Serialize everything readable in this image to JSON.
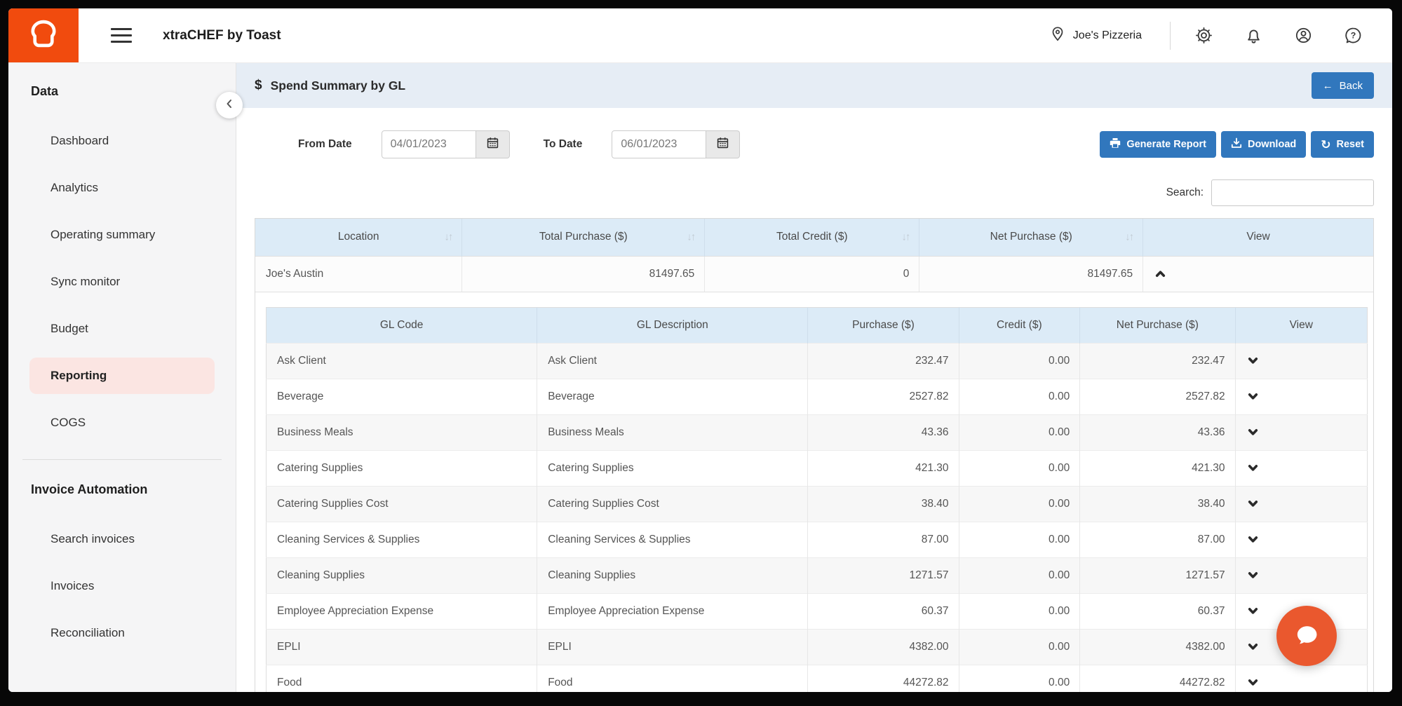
{
  "colors": {
    "brand_orange": "#f14b0e",
    "accent_blue": "#3177bd",
    "chat_orange": "#ea582e",
    "page_bar_bg": "#e6edf5",
    "table_header_bg": "#dcebf7",
    "active_item_bg": "#fbe5e2"
  },
  "icons": {
    "logo": "toast-bread",
    "hamburger": "menu",
    "location": "map-pin",
    "settings": "gear",
    "notifications": "bell",
    "account": "user-circle",
    "help": "question-bubble",
    "collapse": "chevron-left",
    "dollar": "$",
    "back_arrow": "←",
    "generate": "printer",
    "download": "download-tray",
    "reset": "↻",
    "calendar": "calendar",
    "sort": "↓↑",
    "row_expanded": "caret-up",
    "row_collapsed": "caret-down",
    "chat": "speech-bubble"
  },
  "header": {
    "app_title": "xtraCHEF by Toast",
    "location_name": "Joe's Pizzeria"
  },
  "sidebar": {
    "sections": [
      {
        "title": "Data",
        "items": [
          {
            "label": "Dashboard"
          },
          {
            "label": "Analytics"
          },
          {
            "label": "Operating summary"
          },
          {
            "label": "Sync monitor"
          },
          {
            "label": "Budget"
          },
          {
            "label": "Reporting",
            "active": true
          },
          {
            "label": "COGS"
          }
        ]
      },
      {
        "title": "Invoice Automation",
        "items": [
          {
            "label": "Search invoices"
          },
          {
            "label": "Invoices"
          },
          {
            "label": "Reconciliation"
          }
        ]
      }
    ]
  },
  "page": {
    "title": "Spend Summary by GL",
    "back_label": "Back",
    "filters": {
      "from_label": "From Date",
      "from_value": "04/01/2023",
      "to_label": "To Date",
      "to_value": "06/01/2023"
    },
    "actions": {
      "generate": "Generate Report",
      "download": "Download",
      "reset": "Reset"
    },
    "search_label": "Search:",
    "search_value": ""
  },
  "summary_table": {
    "columns": [
      "Location",
      "Total Purchase ($)",
      "Total Credit ($)",
      "Net Purchase ($)",
      "View"
    ],
    "row": {
      "location": "Joe's Austin",
      "total_purchase": "81497.65",
      "total_credit": "0",
      "net_purchase": "81497.65"
    }
  },
  "gl_table": {
    "columns": [
      "GL Code",
      "GL Description",
      "Purchase ($)",
      "Credit ($)",
      "Net Purchase ($)",
      "View"
    ],
    "rows": [
      {
        "code": "Ask Client",
        "desc": "Ask Client",
        "purchase": "232.47",
        "credit": "0.00",
        "net": "232.47"
      },
      {
        "code": "Beverage",
        "desc": "Beverage",
        "purchase": "2527.82",
        "credit": "0.00",
        "net": "2527.82"
      },
      {
        "code": "Business Meals",
        "desc": "Business Meals",
        "purchase": "43.36",
        "credit": "0.00",
        "net": "43.36"
      },
      {
        "code": "Catering Supplies",
        "desc": "Catering Supplies",
        "purchase": "421.30",
        "credit": "0.00",
        "net": "421.30"
      },
      {
        "code": "Catering Supplies Cost",
        "desc": "Catering Supplies Cost",
        "purchase": "38.40",
        "credit": "0.00",
        "net": "38.40"
      },
      {
        "code": "Cleaning Services & Supplies",
        "desc": "Cleaning Services & Supplies",
        "purchase": "87.00",
        "credit": "0.00",
        "net": "87.00"
      },
      {
        "code": "Cleaning Supplies",
        "desc": "Cleaning Supplies",
        "purchase": "1271.57",
        "credit": "0.00",
        "net": "1271.57"
      },
      {
        "code": "Employee Appreciation Expense",
        "desc": "Employee Appreciation Expense",
        "purchase": "60.37",
        "credit": "0.00",
        "net": "60.37"
      },
      {
        "code": "EPLI",
        "desc": "EPLI",
        "purchase": "4382.00",
        "credit": "0.00",
        "net": "4382.00"
      },
      {
        "code": "Food",
        "desc": "Food",
        "purchase": "44272.82",
        "credit": "0.00",
        "net": "44272.82"
      }
    ]
  }
}
